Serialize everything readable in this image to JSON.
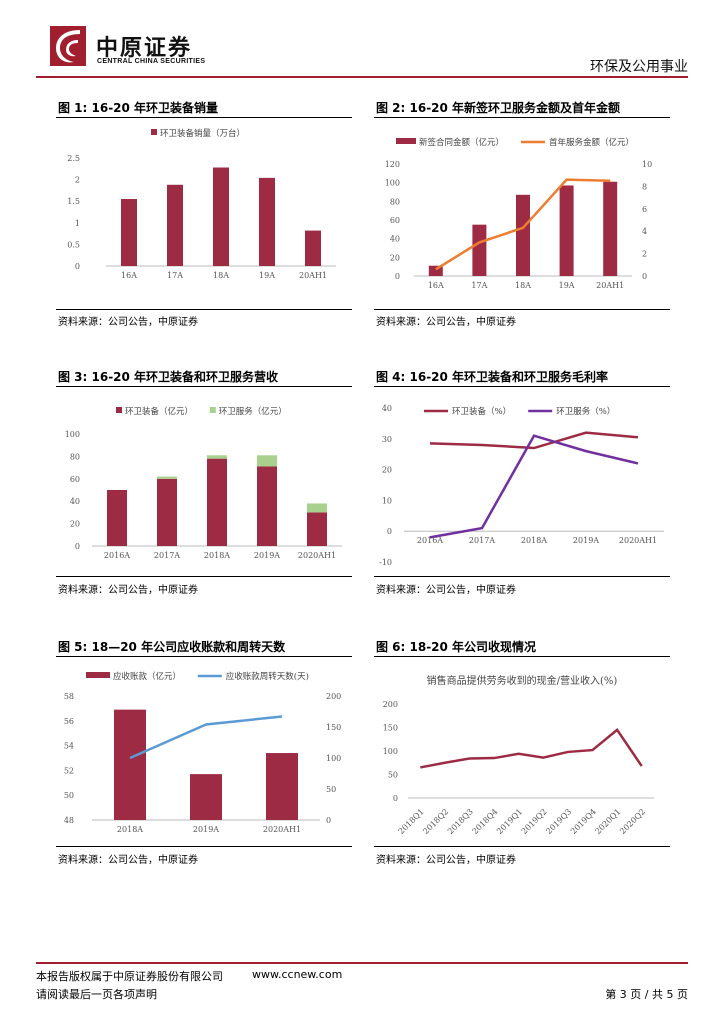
{
  "header": {
    "company_cn": "中原证券",
    "company_en": "CENTRAL CHINA SECURITIES",
    "sector": "环保及公用事业",
    "colors": {
      "brand_red": "#A01E2E",
      "divider": "#A01E2E"
    }
  },
  "figures": [
    {
      "title": "图 1:  16-20 年环卫装备销量",
      "source": "资料来源：公司公告，中原证券"
    },
    {
      "title": "图 2:  16-20 年新签环卫服务金额及首年金额",
      "source": "资料来源：公司公告，中原证券"
    },
    {
      "title": "图 3:  16-20 年环卫装备和环卫服务营收",
      "source": "资料来源：公司公告，中原证券"
    },
    {
      "title": "图 4:  16-20 年环卫装备和环卫服务毛利率",
      "source": "资料来源：公司公告，中原证券"
    },
    {
      "title": "图 5:  18—20 年公司应收账款和周转天数",
      "source": "资料来源：公司公告，中原证券"
    },
    {
      "title": "图 6:  18-20 年公司收现情况",
      "source": "资料来源：公司公告，中原证券"
    }
  ],
  "chart_data": [
    {
      "type": "bar",
      "categories": [
        "16A",
        "17A",
        "18A",
        "19A",
        "20AH1"
      ],
      "series": [
        {
          "name": "环卫装备销量（万台）",
          "values": [
            1.55,
            1.88,
            2.28,
            2.04,
            0.82
          ],
          "color": "#9E2B44"
        }
      ],
      "ylim": [
        0,
        2.5
      ],
      "yticks": [
        "2.5",
        "2",
        "1.5",
        "1",
        "0.5",
        "0"
      ],
      "legend": "top"
    },
    {
      "type": "bar+line",
      "categories": [
        "16A",
        "17A",
        "18A",
        "19A",
        "20AH1"
      ],
      "series": [
        {
          "name": "新签合同金额（亿元）",
          "kind": "bar",
          "axis": "left",
          "values": [
            11,
            55,
            87,
            97,
            101
          ],
          "color": "#9E2B44"
        },
        {
          "name": "首年服务金额（亿元）",
          "kind": "line",
          "axis": "right",
          "values": [
            0.6,
            3,
            4.3,
            8.6,
            8.5
          ],
          "color": "#ED7D31"
        }
      ],
      "ylim_left": [
        0,
        120
      ],
      "yticks_left": [
        "120",
        "100",
        "80",
        "60",
        "40",
        "20",
        "0"
      ],
      "ylim_right": [
        0,
        10
      ],
      "yticks_right": [
        "10",
        "8",
        "6",
        "4",
        "2",
        "0"
      ],
      "legend": "top"
    },
    {
      "type": "stacked-bar",
      "categories": [
        "2016A",
        "2017A",
        "2018A",
        "2019A",
        "2020AH1"
      ],
      "series": [
        {
          "name": "环卫装备（亿元）",
          "values": [
            50,
            60,
            78,
            71,
            30
          ],
          "color": "#9E2B44"
        },
        {
          "name": "环卫服务（亿元）",
          "values": [
            0,
            2,
            3,
            10,
            8
          ],
          "color": "#A9D18E"
        }
      ],
      "ylim": [
        0,
        100
      ],
      "yticks": [
        "100",
        "80",
        "60",
        "40",
        "20",
        "0"
      ],
      "legend": "top"
    },
    {
      "type": "line",
      "categories": [
        "2016A",
        "2017A",
        "2018A",
        "2019A",
        "2020AH1"
      ],
      "series": [
        {
          "name": "环卫装备（%）",
          "values": [
            28.5,
            28,
            27,
            32,
            30.5
          ],
          "color": "#9E2B44"
        },
        {
          "name": "环卫服务（%）",
          "values": [
            -2,
            1,
            31,
            26,
            22
          ],
          "color": "#7030A0"
        }
      ],
      "ylim": [
        -10,
        40
      ],
      "yticks": [
        "40",
        "30",
        "20",
        "10",
        "0",
        "-10"
      ],
      "legend": "top"
    },
    {
      "type": "bar+line",
      "categories": [
        "2018A",
        "2019A",
        "2020AH1"
      ],
      "series": [
        {
          "name": "应收账款（亿元）",
          "kind": "bar",
          "axis": "left",
          "values": [
            56.9,
            51.7,
            53.4
          ],
          "color": "#9E2B44"
        },
        {
          "name": "应收账款周转天数(天)",
          "kind": "line",
          "axis": "right",
          "values": [
            100,
            154,
            167
          ],
          "color": "#5B9BD5"
        }
      ],
      "ylim_left": [
        48,
        58
      ],
      "yticks_left": [
        "58",
        "56",
        "54",
        "52",
        "50",
        "48"
      ],
      "ylim_right": [
        0,
        200
      ],
      "yticks_right": [
        "200",
        "150",
        "100",
        "50",
        "0"
      ],
      "legend": "top"
    },
    {
      "type": "line",
      "categories": [
        "2018Q1",
        "2018Q2",
        "2018Q3",
        "2018Q4",
        "2019Q1",
        "2019Q2",
        "2019Q3",
        "2019Q4",
        "2020Q1",
        "2020Q2"
      ],
      "title": "销售商品提供劳务收到的现金/营业收入(%)",
      "series": [
        {
          "name": "销售商品提供劳务收到的现金/营业收入(%)",
          "values": [
            65,
            75,
            84,
            85,
            94,
            86,
            98,
            102,
            145,
            68
          ],
          "color": "#9E2B44"
        }
      ],
      "ylim": [
        0,
        200
      ],
      "yticks": [
        "200",
        "150",
        "100",
        "50",
        "0"
      ],
      "legend": "none"
    }
  ],
  "footer": {
    "copyright": "本报告版权属于中原证券股份有限公司",
    "website": "www.ccnew.com",
    "disclaimer": "请阅读最后一页各项声明",
    "page": "第 3 页 / 共 5 页"
  }
}
